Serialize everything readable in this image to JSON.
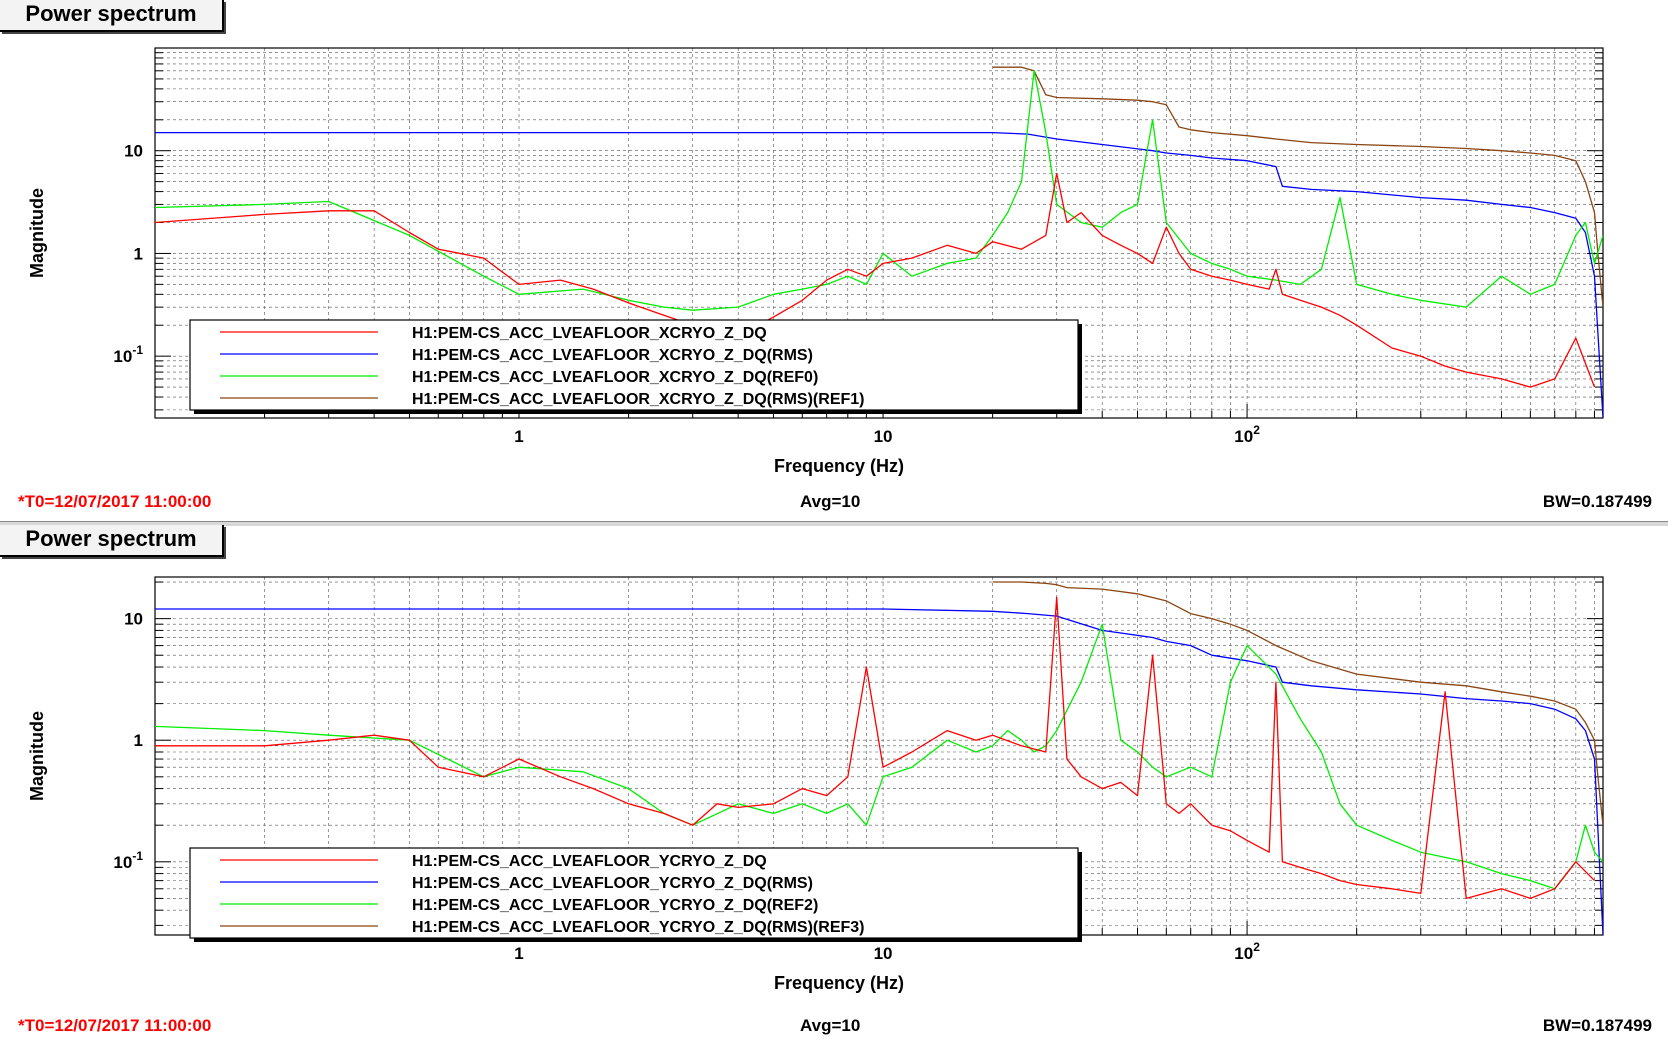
{
  "colors": {
    "measured": "#ff0000",
    "rms": "#0000ff",
    "ref": "#00ee00",
    "ref_rms": "#8b4513"
  },
  "panels": [
    {
      "title": "Power spectrum",
      "t0": "*T0=12/07/2017 11:00:00",
      "avg": "Avg=10",
      "bw": "BW=0.187499",
      "legend": [
        "H1:PEM-CS_ACC_LVEAFLOOR_XCRYO_Z_DQ",
        "H1:PEM-CS_ACC_LVEAFLOOR_XCRYO_Z_DQ(RMS)",
        "H1:PEM-CS_ACC_LVEAFLOOR_XCRYO_Z_DQ(REF0)",
        "H1:PEM-CS_ACC_LVEAFLOOR_XCRYO_Z_DQ(RMS)(REF1)"
      ]
    },
    {
      "title": "Power spectrum",
      "t0": "*T0=12/07/2017 11:00:00",
      "avg": "Avg=10",
      "bw": "BW=0.187499",
      "legend": [
        "H1:PEM-CS_ACC_LVEAFLOOR_YCRYO_Z_DQ",
        "H1:PEM-CS_ACC_LVEAFLOOR_YCRYO_Z_DQ(RMS)",
        "H1:PEM-CS_ACC_LVEAFLOOR_YCRYO_Z_DQ(REF2)",
        "H1:PEM-CS_ACC_LVEAFLOOR_YCRYO_Z_DQ(RMS)(REF3)"
      ]
    }
  ],
  "chart_data": [
    {
      "type": "line",
      "title": "Power spectrum",
      "xlabel": "Frequency (Hz)",
      "ylabel": "Magnitude",
      "xscale": "log",
      "yscale": "log",
      "xlim": [
        0.1,
        950
      ],
      "ylim": [
        0.025,
        100
      ],
      "x_ticks": [
        {
          "v": 1,
          "t": "1"
        },
        {
          "v": 10,
          "t": "10"
        },
        {
          "v": 100,
          "t": "10",
          "sup": "2"
        }
      ],
      "y_ticks": [
        {
          "v": 10,
          "t": "10"
        },
        {
          "v": 1,
          "t": "1"
        },
        {
          "v": 0.1,
          "t": "10",
          "sup": "-1"
        }
      ],
      "grid": true,
      "legend_position": "lower-left",
      "series": [
        {
          "name": "H1:PEM-CS_ACC_LVEAFLOOR_XCRYO_Z_DQ",
          "role": "measured",
          "x": [
            0.1,
            0.2,
            0.3,
            0.4,
            0.5,
            0.6,
            0.8,
            1,
            1.3,
            1.6,
            2,
            2.5,
            3,
            3.5,
            4,
            5,
            6,
            7,
            8,
            9,
            10,
            12,
            15,
            18,
            20,
            24,
            28,
            30,
            32,
            35,
            40,
            45,
            50,
            55,
            60,
            65,
            70,
            80,
            90,
            100,
            115,
            120,
            125,
            140,
            160,
            180,
            200,
            250,
            300,
            350,
            400,
            500,
            600,
            700,
            800,
            900
          ],
          "y": [
            2,
            2.4,
            2.6,
            2.6,
            1.6,
            1.1,
            0.9,
            0.5,
            0.55,
            0.45,
            0.33,
            0.25,
            0.2,
            0.18,
            0.16,
            0.24,
            0.35,
            0.55,
            0.7,
            0.6,
            0.8,
            0.9,
            1.2,
            1.0,
            1.3,
            1.1,
            1.5,
            6,
            2,
            2.5,
            1.5,
            1.2,
            1.0,
            0.8,
            1.8,
            1.0,
            0.7,
            0.6,
            0.55,
            0.5,
            0.45,
            0.7,
            0.4,
            0.35,
            0.3,
            0.25,
            0.2,
            0.12,
            0.1,
            0.08,
            0.07,
            0.06,
            0.05,
            0.06,
            0.15,
            0.05
          ]
        },
        {
          "name": "H1:PEM-CS_ACC_LVEAFLOOR_XCRYO_Z_DQ(RMS)",
          "role": "rms",
          "x": [
            0.1,
            1,
            5,
            10,
            20,
            25,
            30,
            40,
            55,
            60,
            70,
            80,
            100,
            120,
            125,
            150,
            200,
            300,
            400,
            500,
            600,
            700,
            800,
            850,
            900,
            950
          ],
          "y": [
            15,
            15,
            15,
            15,
            15,
            14.5,
            13,
            11.5,
            10,
            9.5,
            9,
            8.5,
            8,
            7,
            4.5,
            4.2,
            4,
            3.5,
            3.3,
            3,
            2.8,
            2.5,
            2.2,
            1.6,
            0.6,
            0.025
          ]
        },
        {
          "name": "H1:PEM-CS_ACC_LVEAFLOOR_XCRYO_Z_DQ(REF0)",
          "role": "ref",
          "x": [
            0.1,
            0.2,
            0.3,
            0.5,
            0.8,
            1,
            1.5,
            2,
            2.5,
            3,
            4,
            5,
            6,
            7,
            8,
            9,
            10,
            12,
            15,
            18,
            20,
            22,
            24,
            26,
            28,
            30,
            35,
            40,
            45,
            50,
            55,
            60,
            70,
            80,
            90,
            100,
            120,
            140,
            160,
            180,
            200,
            250,
            300,
            400,
            500,
            600,
            700,
            800,
            850,
            900,
            950
          ],
          "y": [
            2.8,
            3,
            3.2,
            1.5,
            0.6,
            0.4,
            0.45,
            0.35,
            0.3,
            0.28,
            0.3,
            0.4,
            0.45,
            0.5,
            0.6,
            0.5,
            1.0,
            0.6,
            0.8,
            0.9,
            1.5,
            2.5,
            5,
            60,
            15,
            3,
            2,
            1.8,
            2.5,
            3,
            20,
            2,
            1,
            0.8,
            0.7,
            0.6,
            0.55,
            0.5,
            0.7,
            3.5,
            0.5,
            0.4,
            0.35,
            0.3,
            0.6,
            0.4,
            0.5,
            1.5,
            2,
            0.8,
            1.5
          ]
        },
        {
          "name": "H1:PEM-CS_ACC_LVEAFLOOR_XCRYO_Z_DQ(RMS)(REF1)",
          "role": "ref_rms",
          "x": [
            20,
            22,
            24,
            26,
            28,
            30,
            40,
            50,
            55,
            60,
            65,
            70,
            80,
            100,
            120,
            150,
            200,
            300,
            400,
            500,
            600,
            700,
            800,
            850,
            900,
            920,
            950
          ],
          "y": [
            65,
            65,
            65,
            60,
            35,
            33,
            32,
            31,
            30,
            28,
            17,
            16,
            15,
            14,
            13,
            12,
            11.5,
            11,
            10.5,
            10,
            9.5,
            9,
            8,
            5,
            2.5,
            1.0,
            0.3
          ]
        }
      ]
    },
    {
      "type": "line",
      "title": "Power spectrum",
      "xlabel": "Frequency (Hz)",
      "ylabel": "Magnitude",
      "xscale": "log",
      "yscale": "log",
      "xlim": [
        0.1,
        950
      ],
      "ylim": [
        0.025,
        22
      ],
      "x_ticks": [
        {
          "v": 1,
          "t": "1"
        },
        {
          "v": 10,
          "t": "10"
        },
        {
          "v": 100,
          "t": "10",
          "sup": "2"
        }
      ],
      "y_ticks": [
        {
          "v": 10,
          "t": "10"
        },
        {
          "v": 1,
          "t": "1"
        },
        {
          "v": 0.1,
          "t": "10",
          "sup": "-1"
        }
      ],
      "grid": true,
      "legend_position": "lower-left",
      "series": [
        {
          "name": "H1:PEM-CS_ACC_LVEAFLOOR_YCRYO_Z_DQ",
          "role": "measured",
          "x": [
            0.1,
            0.2,
            0.3,
            0.4,
            0.5,
            0.6,
            0.8,
            1,
            1.3,
            1.6,
            2,
            2.5,
            3,
            3.5,
            4,
            5,
            6,
            7,
            8,
            9,
            10,
            12,
            15,
            18,
            20,
            24,
            28,
            30,
            32,
            35,
            40,
            45,
            50,
            55,
            60,
            65,
            70,
            80,
            90,
            100,
            115,
            120,
            125,
            140,
            160,
            180,
            200,
            250,
            300,
            350,
            400,
            500,
            600,
            700,
            800,
            900
          ],
          "y": [
            0.9,
            0.9,
            1.0,
            1.1,
            1.0,
            0.6,
            0.5,
            0.7,
            0.5,
            0.4,
            0.3,
            0.25,
            0.2,
            0.3,
            0.28,
            0.3,
            0.4,
            0.35,
            0.5,
            4,
            0.6,
            0.8,
            1.2,
            1.0,
            1.1,
            0.9,
            0.8,
            15,
            0.7,
            0.5,
            0.4,
            0.45,
            0.35,
            5,
            0.3,
            0.25,
            0.3,
            0.2,
            0.18,
            0.15,
            0.12,
            3,
            0.1,
            0.09,
            0.08,
            0.07,
            0.065,
            0.06,
            0.055,
            2.5,
            0.05,
            0.06,
            0.05,
            0.06,
            0.1,
            0.07
          ]
        },
        {
          "name": "H1:PEM-CS_ACC_LVEAFLOOR_YCRYO_Z_DQ(RMS)",
          "role": "rms",
          "x": [
            0.1,
            1,
            5,
            10,
            20,
            25,
            30,
            40,
            55,
            60,
            70,
            80,
            100,
            120,
            125,
            150,
            200,
            300,
            400,
            500,
            600,
            700,
            800,
            850,
            900,
            950
          ],
          "y": [
            12,
            12,
            12,
            12,
            11.5,
            11,
            10.5,
            8,
            7,
            6.5,
            6,
            5,
            4.5,
            4,
            3,
            2.8,
            2.6,
            2.4,
            2.2,
            2.1,
            2,
            1.8,
            1.5,
            1.2,
            0.7,
            0.025
          ]
        },
        {
          "name": "H1:PEM-CS_ACC_LVEAFLOOR_YCRYO_Z_DQ(REF2)",
          "role": "ref",
          "x": [
            0.1,
            0.2,
            0.3,
            0.5,
            0.8,
            1,
            1.5,
            2,
            2.5,
            3,
            4,
            5,
            6,
            7,
            8,
            9,
            10,
            12,
            15,
            18,
            20,
            22,
            24,
            26,
            28,
            30,
            35,
            40,
            45,
            50,
            55,
            60,
            70,
            80,
            90,
            100,
            120,
            140,
            160,
            180,
            200,
            250,
            300,
            400,
            500,
            600,
            700,
            800,
            850,
            900,
            950
          ],
          "y": [
            1.3,
            1.2,
            1.1,
            1.0,
            0.5,
            0.6,
            0.55,
            0.4,
            0.25,
            0.2,
            0.3,
            0.25,
            0.3,
            0.25,
            0.3,
            0.2,
            0.5,
            0.6,
            1.0,
            0.8,
            0.9,
            1.2,
            1.0,
            0.8,
            0.9,
            1.2,
            3,
            9,
            1.0,
            0.8,
            0.6,
            0.5,
            0.6,
            0.5,
            3,
            6,
            3.5,
            1.5,
            0.8,
            0.3,
            0.2,
            0.15,
            0.12,
            0.1,
            0.08,
            0.07,
            0.06,
            0.1,
            0.2,
            0.12,
            0.1
          ]
        },
        {
          "name": "H1:PEM-CS_ACC_LVEAFLOOR_YCRYO_Z_DQ(RMS)(REF3)",
          "role": "ref_rms",
          "x": [
            20,
            24,
            28,
            30,
            32,
            40,
            50,
            60,
            70,
            80,
            90,
            100,
            120,
            150,
            200,
            300,
            400,
            500,
            600,
            700,
            800,
            850,
            900,
            920,
            950
          ],
          "y": [
            20,
            20,
            19.5,
            19,
            18,
            17.5,
            16,
            14,
            11,
            10,
            9,
            8,
            6,
            4.5,
            3.5,
            3,
            2.8,
            2.5,
            2.3,
            2.1,
            1.8,
            1.4,
            1,
            0.5,
            0.2
          ]
        }
      ]
    }
  ]
}
